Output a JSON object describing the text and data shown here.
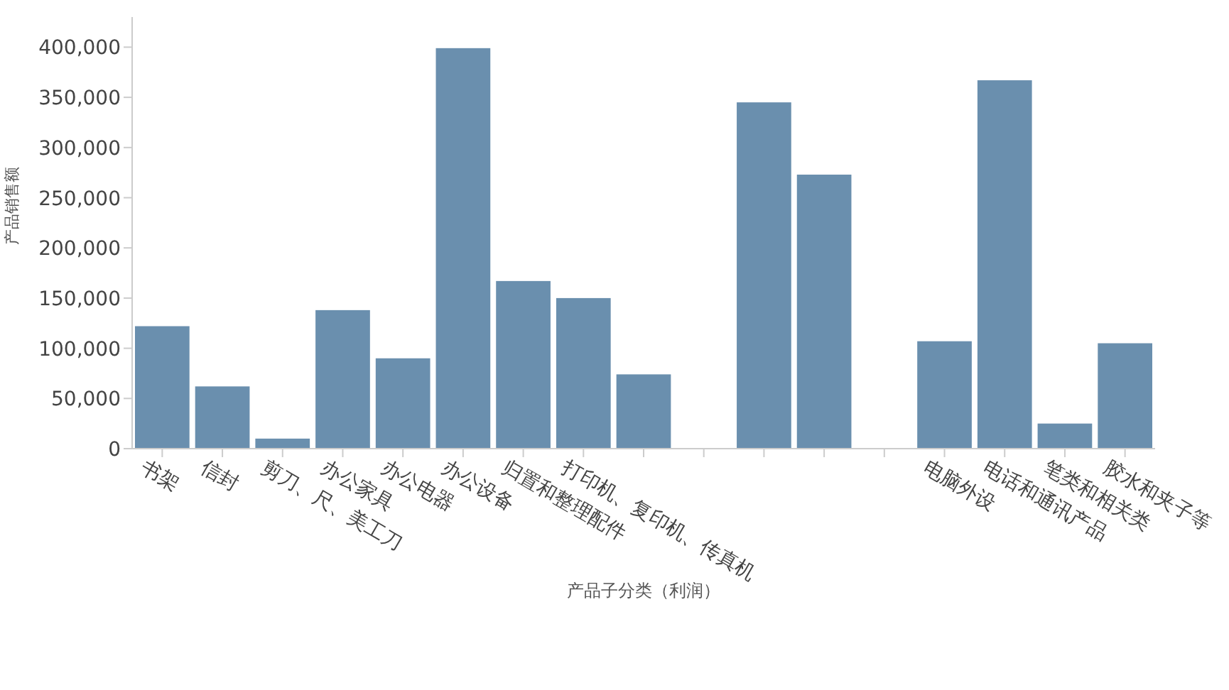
{
  "chart_data": {
    "type": "bar",
    "xlabel": "产品子分类（利润）",
    "ylabel": "产品销售额",
    "categories": [
      "书架",
      "信封",
      "剪刀、尺、美工刀",
      "办公家具",
      "办公电器",
      "办公设备",
      "归置和整理配件",
      "打印机、复印机、传真机",
      null,
      null,
      null,
      null,
      null,
      "电脑外设",
      "电话和通讯产品",
      "笔类和相关类",
      "胶水和夹子等"
    ],
    "values": [
      122000,
      62000,
      10000,
      138000,
      90000,
      399000,
      167000,
      150000,
      74000,
      null,
      345000,
      273000,
      null,
      107000,
      367000,
      25000,
      105000
    ],
    "color": "#6a8fae",
    "ylim": [
      0,
      430000
    ],
    "yticks": [
      {
        "value": 0,
        "label": "0"
      },
      {
        "value": 50000,
        "label": "50,000"
      },
      {
        "value": 100000,
        "label": "100,000"
      },
      {
        "value": 150000,
        "label": "150,000"
      },
      {
        "value": 200000,
        "label": "200,000"
      },
      {
        "value": 250000,
        "label": "250,000"
      },
      {
        "value": 300000,
        "label": "300,000"
      },
      {
        "value": 350000,
        "label": "350,000"
      },
      {
        "value": 400000,
        "label": "400,000"
      }
    ]
  }
}
